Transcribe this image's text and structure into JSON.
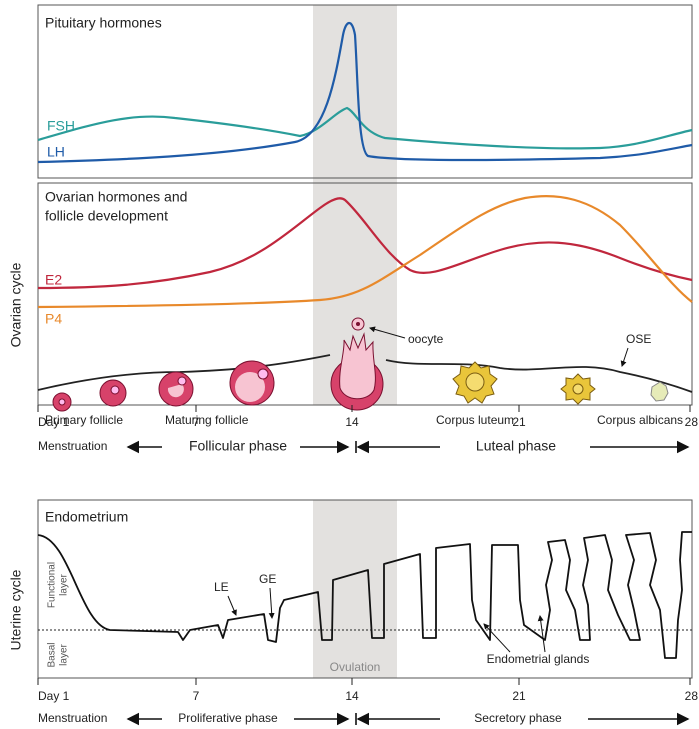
{
  "side_labels": [
    "Ovarian cycle",
    "Uterine cycle"
  ],
  "pituitary": {
    "title": "Pituitary hormones",
    "fsh": "FSH",
    "lh": "LH"
  },
  "ovarian": {
    "title_lines": [
      "Ovarian hormones and",
      "follicle development"
    ],
    "e2": "E2",
    "p4": "P4",
    "oocyte": "oocyte",
    "ose": "OSE",
    "follicles": [
      "Primary follicle",
      "Maturing follicle",
      "Corpus luteum",
      "Corpus albicans"
    ]
  },
  "ovarian_axis": {
    "days": [
      "Day 1",
      "7",
      "14",
      "21",
      "28"
    ],
    "phases": [
      "Menstruation",
      "Follicular phase",
      "Luteal phase"
    ]
  },
  "endometrium": {
    "title": "Endometrium",
    "functional_layer": [
      "Functional",
      "layer"
    ],
    "basal_layer": [
      "Basal",
      "layer"
    ],
    "le": "LE",
    "ge": "GE",
    "ovulation": "Ovulation",
    "glands": "Endometrial glands"
  },
  "uterine_axis": {
    "days": [
      "Day 1",
      "7",
      "14",
      "21",
      "28"
    ],
    "phases": [
      "Menstruation",
      "Proliferative phase",
      "Secretory phase"
    ]
  }
}
